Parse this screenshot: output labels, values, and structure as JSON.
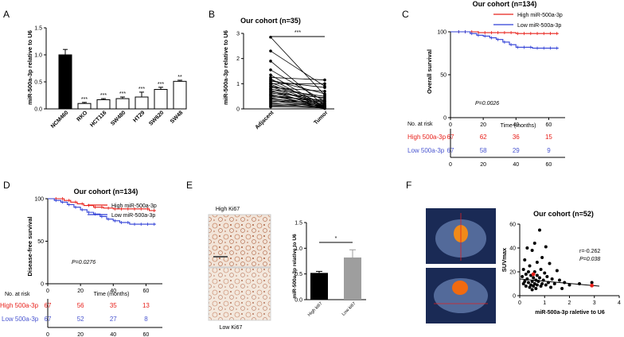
{
  "colors": {
    "high": "#e8201a",
    "low": "#2f3fd6",
    "lowText": "#4a56d0",
    "black": "#000000",
    "grey": "#9e9e9e"
  },
  "panels": {
    "A": {
      "label": "A"
    },
    "B": {
      "label": "B"
    },
    "C": {
      "label": "C"
    },
    "D": {
      "label": "D"
    },
    "E": {
      "label": "E"
    },
    "F": {
      "label": "F"
    }
  },
  "chart_data": [
    {
      "id": "A",
      "type": "bar",
      "title": "",
      "ylabel": "miR-500a-3p relative to U6",
      "ylim": [
        0,
        1.5
      ],
      "yticks": [
        "0.0",
        "0.5",
        "1.0",
        "1.5"
      ],
      "categories": [
        "NCM460",
        "RKO",
        "HCT116",
        "SW480",
        "HT29",
        "SW620",
        "SW48"
      ],
      "values": [
        1.0,
        0.1,
        0.17,
        0.19,
        0.22,
        0.36,
        0.51
      ],
      "errors": [
        0.1,
        0.02,
        0.02,
        0.03,
        0.09,
        0.04,
        0.02
      ],
      "fills": [
        "#000000",
        "#ffffff",
        "#ffffff",
        "#ffffff",
        "#ffffff",
        "#ffffff",
        "#ffffff"
      ],
      "annotations": [
        "",
        "***",
        "***",
        "***",
        "***",
        "***",
        "**"
      ]
    },
    {
      "id": "B",
      "type": "line",
      "title": "Our cohort (n=35)",
      "ylabel": "miR-500a-3p relative to U6",
      "ylim": [
        0,
        3
      ],
      "yticks": [
        "0",
        "1",
        "2",
        "3"
      ],
      "categories": [
        "Adjacent",
        "Tumor"
      ],
      "significance": "***",
      "pairs": [
        [
          2.85,
          0.55
        ],
        [
          2.3,
          0.9
        ],
        [
          1.9,
          0.12
        ],
        [
          1.55,
          0.3
        ],
        [
          1.35,
          0.08
        ],
        [
          1.25,
          1.15
        ],
        [
          1.2,
          0.05
        ],
        [
          1.15,
          0.6
        ],
        [
          1.1,
          0.85
        ],
        [
          1.05,
          0.2
        ],
        [
          1.0,
          1.0
        ],
        [
          0.98,
          0.1
        ],
        [
          0.92,
          0.4
        ],
        [
          0.9,
          0.05
        ],
        [
          0.85,
          0.7
        ],
        [
          0.8,
          0.15
        ],
        [
          0.78,
          0.5
        ],
        [
          0.74,
          0.02
        ],
        [
          0.7,
          0.3
        ],
        [
          0.66,
          0.1
        ],
        [
          0.62,
          0.45
        ],
        [
          0.58,
          0.05
        ],
        [
          0.55,
          0.25
        ],
        [
          0.52,
          0.08
        ],
        [
          0.48,
          0.35
        ],
        [
          0.44,
          0.03
        ],
        [
          0.4,
          0.2
        ],
        [
          0.36,
          0.12
        ],
        [
          0.32,
          0.06
        ],
        [
          0.28,
          0.3
        ],
        [
          0.24,
          0.02
        ],
        [
          0.2,
          0.15
        ],
        [
          0.16,
          0.05
        ],
        [
          0.12,
          0.1
        ],
        [
          0.08,
          0.04
        ]
      ]
    },
    {
      "id": "C",
      "type": "line",
      "title": "Our cohort (n=134)",
      "ylabel": "Overall survival",
      "xlabel": "Time (months)",
      "ylim": [
        0,
        100
      ],
      "xlim": [
        0,
        70
      ],
      "yticks": [
        "0",
        "50",
        "100"
      ],
      "xticks": [
        "0",
        "20",
        "40",
        "60"
      ],
      "legend": [
        "High miR-500a-3p",
        "Low miR-500a-3p"
      ],
      "pvalue": "P=0.0026",
      "series": [
        {
          "name": "High miR-500a-3p",
          "points": [
            [
              0,
              100
            ],
            [
              15,
              100
            ],
            [
              17,
              99
            ],
            [
              40,
              98
            ],
            [
              66,
              98
            ]
          ]
        },
        {
          "name": "Low miR-500a-3p",
          "points": [
            [
              0,
              100
            ],
            [
              10,
              100
            ],
            [
              12,
              98
            ],
            [
              16,
              96
            ],
            [
              20,
              95
            ],
            [
              24,
              93
            ],
            [
              28,
              91
            ],
            [
              32,
              88
            ],
            [
              36,
              85
            ],
            [
              40,
              82
            ],
            [
              50,
              81
            ],
            [
              66,
              81
            ]
          ]
        }
      ],
      "risk": {
        "title": "No. at risk",
        "high_label": "High 500a-3p",
        "low_label": "Low 500a-3p",
        "high": [
          "67",
          "62",
          "36",
          "15"
        ],
        "low": [
          "67",
          "58",
          "29",
          "9"
        ],
        "xticks": [
          "0",
          "20",
          "40",
          "60"
        ]
      }
    },
    {
      "id": "D",
      "type": "line",
      "title": "Our cohort (n=134)",
      "ylabel": "Disease-free survival",
      "xlabel": "Time (months)",
      "ylim": [
        0,
        100
      ],
      "xlim": [
        0,
        70
      ],
      "yticks": [
        "0",
        "50",
        "100"
      ],
      "xticks": [
        "0",
        "20",
        "40",
        "60"
      ],
      "legend": [
        "High miR-500a-3p",
        "Low miR-500a-3p"
      ],
      "pvalue": "P=0.0276",
      "series": [
        {
          "name": "High miR-500a-3p",
          "points": [
            [
              0,
              100
            ],
            [
              8,
              100
            ],
            [
              10,
              98
            ],
            [
              14,
              96
            ],
            [
              18,
              94
            ],
            [
              22,
              92
            ],
            [
              28,
              90
            ],
            [
              34,
              89
            ],
            [
              40,
              88
            ],
            [
              60,
              88
            ],
            [
              62,
              86
            ],
            [
              66,
              86
            ]
          ]
        },
        {
          "name": "Low miR-500a-3p",
          "points": [
            [
              0,
              100
            ],
            [
              4,
              98
            ],
            [
              8,
              96
            ],
            [
              12,
              93
            ],
            [
              16,
              90
            ],
            [
              20,
              87
            ],
            [
              24,
              84
            ],
            [
              28,
              82
            ],
            [
              32,
              79
            ],
            [
              36,
              76
            ],
            [
              40,
              74
            ],
            [
              44,
              72
            ],
            [
              50,
              70
            ],
            [
              66,
              70
            ]
          ]
        }
      ],
      "risk": {
        "title": "No. at risk",
        "high_label": "High 500a-3p",
        "low_label": "Low 500a-3p",
        "high": [
          "67",
          "56",
          "35",
          "13"
        ],
        "low": [
          "67",
          "52",
          "27",
          "8"
        ],
        "xticks": [
          "0",
          "20",
          "40",
          "60"
        ]
      }
    },
    {
      "id": "E",
      "type": "bar",
      "ylabel": "miR-500a-3p relative to U6",
      "ylim": [
        0,
        1.5
      ],
      "yticks": [
        "0.0",
        "0.5",
        "1.0",
        "1.5"
      ],
      "categories": [
        "High ki67",
        "Low ki67"
      ],
      "values": [
        0.52,
        0.82
      ],
      "errors": [
        0.03,
        0.15
      ],
      "significance": "*",
      "image_labels": [
        "High Ki67",
        "Low Ki67"
      ]
    },
    {
      "id": "F",
      "type": "scatter",
      "title": "Our cohort (n=52)",
      "ylabel": "SUVmax",
      "xlabel": "miR-500a-3p raletive to U6",
      "ylim": [
        0,
        60
      ],
      "xlim": [
        0,
        4
      ],
      "yticks": [
        "0",
        "20",
        "40",
        "60"
      ],
      "xticks": [
        "0",
        "1",
        "2",
        "3",
        "4"
      ],
      "r": "r=-0.262",
      "pvalue": "P=0.038",
      "fit": [
        [
          0,
          14
        ],
        [
          3.2,
          8
        ]
      ],
      "points": [
        [
          0.8,
          55
        ],
        [
          0.6,
          44
        ],
        [
          1.05,
          41
        ],
        [
          0.3,
          40
        ],
        [
          0.5,
          38
        ],
        [
          0.9,
          32
        ],
        [
          0.2,
          30
        ],
        [
          0.7,
          28
        ],
        [
          1.2,
          27
        ],
        [
          0.4,
          25
        ],
        [
          0.15,
          22
        ],
        [
          0.85,
          22
        ],
        [
          1.5,
          21
        ],
        [
          0.35,
          20
        ],
        [
          0.6,
          20
        ],
        [
          1.0,
          19
        ],
        [
          0.25,
          18
        ],
        [
          0.45,
          17
        ],
        [
          0.7,
          17
        ],
        [
          1.1,
          16
        ],
        [
          0.1,
          16
        ],
        [
          0.55,
          15
        ],
        [
          0.8,
          15
        ],
        [
          1.3,
          14
        ],
        [
          0.3,
          14
        ],
        [
          0.65,
          13
        ],
        [
          0.95,
          13
        ],
        [
          1.6,
          13
        ],
        [
          0.2,
          12
        ],
        [
          0.5,
          12
        ],
        [
          0.75,
          12
        ],
        [
          1.15,
          11
        ],
        [
          1.8,
          11
        ],
        [
          0.35,
          11
        ],
        [
          0.6,
          10
        ],
        [
          0.9,
          10
        ],
        [
          1.4,
          10
        ],
        [
          0.15,
          10
        ],
        [
          0.45,
          9
        ],
        [
          0.7,
          9
        ],
        [
          1.05,
          9
        ],
        [
          2.0,
          9
        ],
        [
          0.25,
          8
        ],
        [
          0.55,
          8
        ],
        [
          0.85,
          8
        ],
        [
          1.25,
          7
        ],
        [
          0.4,
          7
        ],
        [
          0.65,
          6
        ],
        [
          1.7,
          6
        ],
        [
          2.4,
          10
        ],
        [
          2.9,
          11
        ],
        [
          0.5,
          5
        ]
      ],
      "highlight": [
        [
          0.55,
          18
        ],
        [
          2.9,
          8.5
        ]
      ],
      "image_labels": []
    }
  ]
}
